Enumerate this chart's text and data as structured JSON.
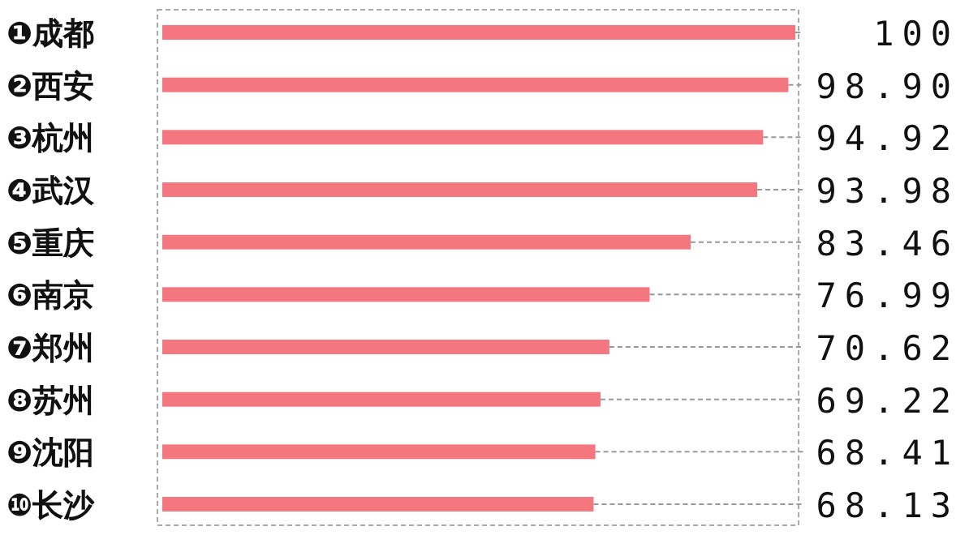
{
  "chart_data": {
    "type": "bar",
    "orientation": "horizontal",
    "categories": [
      "❶成都",
      "❷西安",
      "❸杭州",
      "❹武汉",
      "❺重庆",
      "❻南京",
      "❼郑州",
      "❽苏州",
      "❾沈阳",
      "❿长沙"
    ],
    "values": [
      100,
      98.9,
      94.92,
      93.98,
      83.46,
      76.99,
      70.62,
      69.22,
      68.41,
      68.13
    ],
    "value_labels": [
      "100",
      "98.90",
      "94.92",
      "93.98",
      "83.46",
      "76.99",
      "70.62",
      "69.22",
      "68.41",
      "68.13"
    ],
    "color": "#f4767f"
  }
}
